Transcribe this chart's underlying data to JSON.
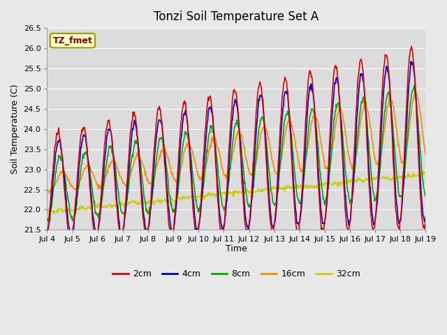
{
  "title": "Tonzi Soil Temperature Set A",
  "ylabel": "Soil Temperature (C)",
  "xlabel": "Time",
  "annotation": "TZ_fmet",
  "ylim": [
    21.5,
    26.5
  ],
  "x_tick_labels": [
    "Jul 4",
    "Jul 5",
    "Jul 6",
    "Jul 7",
    "Jul 8",
    "Jul 9",
    "Jul 10",
    "Jul 11",
    "Jul 12",
    "Jul 13",
    "Jul 14",
    "Jul 15",
    "Jul 16",
    "Jul 17",
    "Jul 18",
    "Jul 19"
  ],
  "series": {
    "2cm": {
      "color": "#dd0000",
      "linewidth": 1.2
    },
    "4cm": {
      "color": "#0000cc",
      "linewidth": 1.2
    },
    "8cm": {
      "color": "#00aa00",
      "linewidth": 1.2
    },
    "16cm": {
      "color": "#ff8800",
      "linewidth": 1.2
    },
    "32cm": {
      "color": "#cccc00",
      "linewidth": 1.2
    }
  },
  "fig_bg_color": "#e8e8e8",
  "plot_bg_color": "#dcdcdc",
  "grid_color": "#ffffff",
  "title_fontsize": 12,
  "label_fontsize": 9,
  "tick_fontsize": 8
}
